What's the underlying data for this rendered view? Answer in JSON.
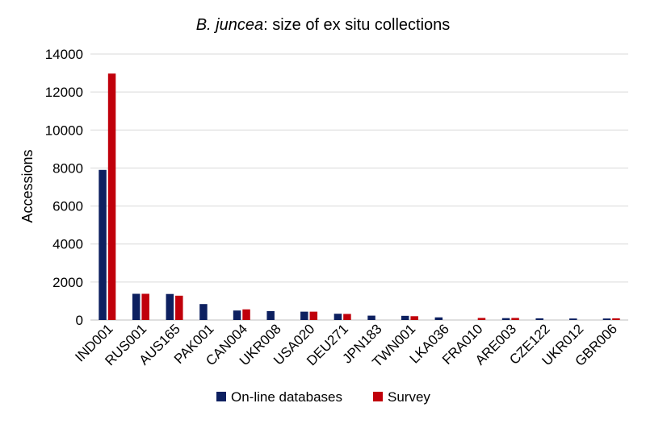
{
  "chart_data": {
    "type": "bar",
    "title_italic": "B. juncea",
    "title_rest": ": size of ex situ collections",
    "xlabel": "",
    "ylabel": "Accessions",
    "ylim": [
      0,
      14000
    ],
    "yticks": [
      0,
      2000,
      4000,
      6000,
      8000,
      10000,
      12000,
      14000
    ],
    "grid": true,
    "legend_position": "bottom",
    "categories": [
      "IND001",
      "RUS001",
      "AUS165",
      "PAK001",
      "CAN004",
      "UKR008",
      "USA020",
      "DEU271",
      "JPN183",
      "TWN001",
      "LKA036",
      "FRA010",
      "ARE003",
      "CZE122",
      "UKR012",
      "GBR006"
    ],
    "series": [
      {
        "name": "On-line databases",
        "color": "#0d2060",
        "values": [
          7900,
          1380,
          1370,
          840,
          500,
          470,
          440,
          330,
          230,
          220,
          140,
          0,
          100,
          90,
          80,
          80
        ]
      },
      {
        "name": "Survey",
        "color": "#c0000b",
        "values": [
          12970,
          1380,
          1280,
          0,
          560,
          0,
          440,
          320,
          0,
          200,
          0,
          110,
          110,
          0,
          0,
          90
        ]
      }
    ]
  }
}
